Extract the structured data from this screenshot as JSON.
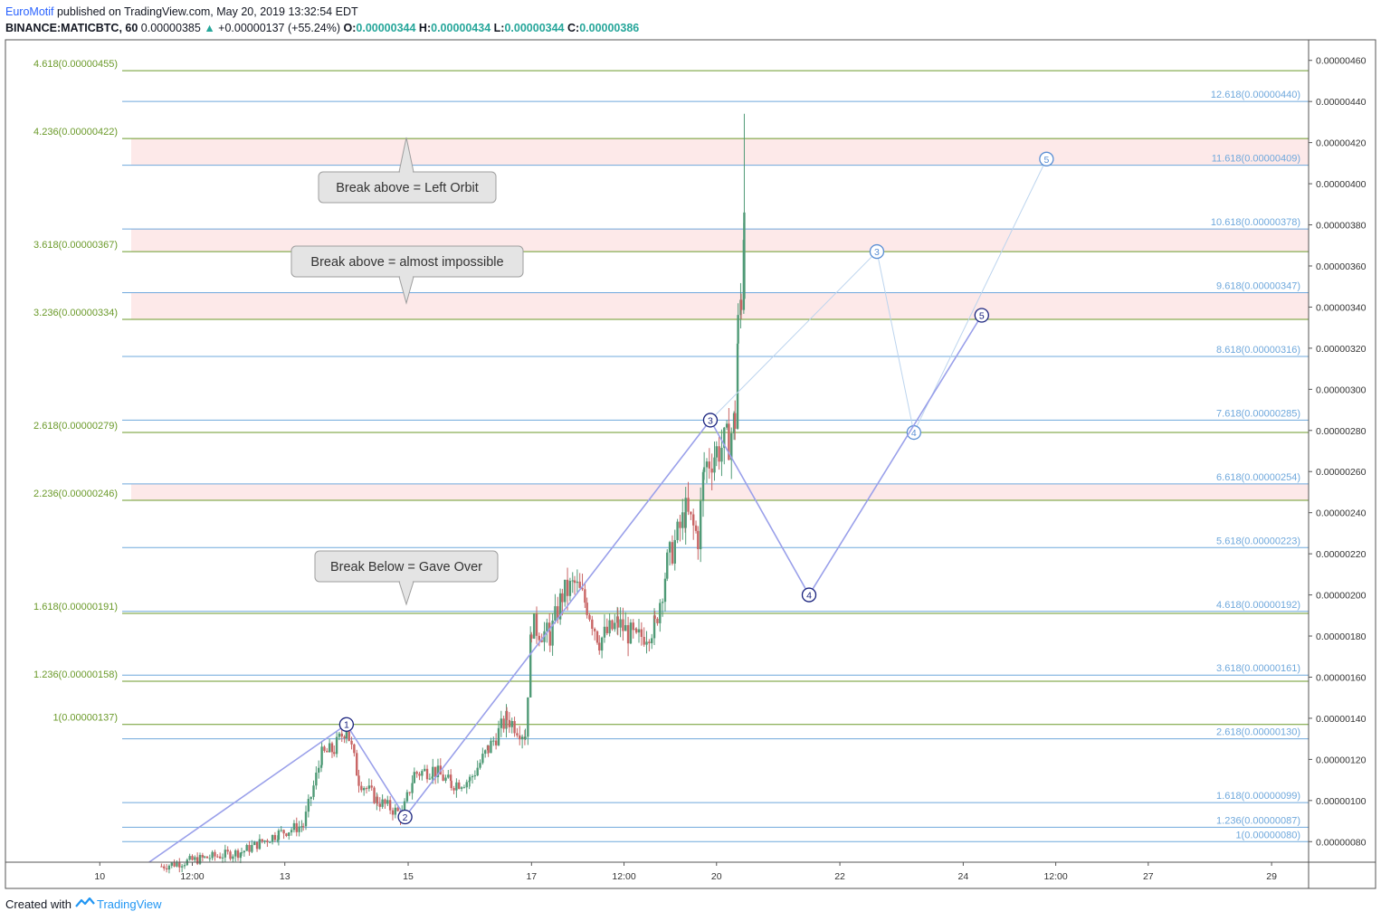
{
  "header": {
    "author": "EuroMotif",
    "published_text": "published on TradingView.com, May 20, 2019 13:32:54 EDT",
    "symbol": "BINANCE:MATICBTC, 60",
    "last": "0.00000385",
    "change_arrow": "▲",
    "change": "+0.00000137 (+55.24%)",
    "o_label": "O:",
    "o_val": "0.00000344",
    "h_label": "H:",
    "h_val": "0.00000434",
    "l_label": "L:",
    "l_val": "0.00000344",
    "c_label": "C:",
    "c_val": "0.00000386"
  },
  "footer": {
    "created_with": "Created with",
    "brand": "TradingView"
  },
  "colors": {
    "up": "#4f9a76",
    "down": "#c86464",
    "green_fib": "#6b9a2a",
    "blue_fib": "#6fa8dc",
    "zone": "#fde9e9",
    "wave": "#9aa0ea",
    "wave_light": "#bcd4ee",
    "label_dark": "#1a237e",
    "label_light": "#5b8fd4"
  },
  "chart_data": {
    "type": "candlestick",
    "y_axis": {
      "min": 7e-07,
      "max": 4.7e-06,
      "ticks": [
        "0.00000460",
        "0.00000440",
        "0.00000420",
        "0.00000400",
        "0.00000380",
        "0.00000360",
        "0.00000340",
        "0.00000320",
        "0.00000300",
        "0.00000280",
        "0.00000260",
        "0.00000240",
        "0.00000220",
        "0.00000200",
        "0.00000180",
        "0.00000160",
        "0.00000140",
        "0.00000120",
        "0.00000100",
        "0.00000080"
      ]
    },
    "x_axis": {
      "labels": [
        {
          "t": 10.0,
          "text": "10"
        },
        {
          "t": 11.5,
          "text": "12:00"
        },
        {
          "t": 13.0,
          "text": "13"
        },
        {
          "t": 15.0,
          "text": "15"
        },
        {
          "t": 17.0,
          "text": "17"
        },
        {
          "t": 18.5,
          "text": "12:00"
        },
        {
          "t": 20.0,
          "text": "20"
        },
        {
          "t": 22.0,
          "text": "22"
        },
        {
          "t": 24.0,
          "text": "24"
        },
        {
          "t": 25.5,
          "text": "12:00"
        },
        {
          "t": 27.0,
          "text": "27"
        },
        {
          "t": 29.0,
          "text": "29"
        }
      ]
    },
    "fib_left": [
      {
        "label": "4.618(0.00000455)",
        "price": 4.55e-06
      },
      {
        "label": "4.236(0.00000422)",
        "price": 4.22e-06
      },
      {
        "label": "3.618(0.00000367)",
        "price": 3.67e-06
      },
      {
        "label": "3.236(0.00000334)",
        "price": 3.34e-06
      },
      {
        "label": "2.618(0.00000279)",
        "price": 2.79e-06
      },
      {
        "label": "2.236(0.00000246)",
        "price": 2.46e-06
      },
      {
        "label": "1.618(0.00000191)",
        "price": 1.91e-06
      },
      {
        "label": "1.236(0.00000158)",
        "price": 1.58e-06
      },
      {
        "label": "1(0.00000137)",
        "price": 1.37e-06
      }
    ],
    "fib_right": [
      {
        "label": "12.618(0.00000440)",
        "price": 4.4e-06
      },
      {
        "label": "11.618(0.00000409)",
        "price": 4.09e-06
      },
      {
        "label": "10.618(0.00000378)",
        "price": 3.78e-06
      },
      {
        "label": "9.618(0.00000347)",
        "price": 3.47e-06
      },
      {
        "label": "8.618(0.00000316)",
        "price": 3.16e-06
      },
      {
        "label": "7.618(0.00000285)",
        "price": 2.85e-06
      },
      {
        "label": "6.618(0.00000254)",
        "price": 2.54e-06
      },
      {
        "label": "5.618(0.00000223)",
        "price": 2.23e-06
      },
      {
        "label": "4.618(0.00000192)",
        "price": 1.92e-06
      },
      {
        "label": "3.618(0.00000161)",
        "price": 1.61e-06
      },
      {
        "label": "2.618(0.00000130)",
        "price": 1.3e-06
      },
      {
        "label": "1.618(0.00000099)",
        "price": 9.9e-07
      },
      {
        "label": "1.236(0.00000087)",
        "price": 8.7e-07
      },
      {
        "label": "1(0.00000080)",
        "price": 8e-07
      }
    ],
    "zones": [
      {
        "from": 4.09e-06,
        "to": 4.22e-06
      },
      {
        "from": 3.67e-06,
        "to": 3.78e-06
      },
      {
        "from": 3.34e-06,
        "to": 3.47e-06
      },
      {
        "from": 2.46e-06,
        "to": 2.54e-06
      }
    ],
    "callouts": [
      {
        "text": "Break above = Left Orbit",
        "pointer": "up"
      },
      {
        "text": "Break above = almost impossible",
        "pointer": "down"
      },
      {
        "text": "Break Below = Gave Over",
        "pointer": "down"
      }
    ],
    "waves_primary": [
      {
        "label": "",
        "t": 10.8,
        "price": 7e-07
      },
      {
        "label": "1",
        "t": 14.0,
        "price": 1.37e-06
      },
      {
        "label": "2",
        "t": 14.95,
        "price": 9.2e-07
      },
      {
        "label": "3",
        "t": 19.9,
        "price": 2.85e-06
      },
      {
        "label": "4",
        "t": 21.5,
        "price": 2e-06
      },
      {
        "label": "5",
        "t": 24.3,
        "price": 3.36e-06
      }
    ],
    "waves_alt": [
      {
        "label": "3",
        "t": 22.6,
        "price": 3.67e-06
      },
      {
        "label": "4",
        "t": 23.2,
        "price": 2.79e-06
      },
      {
        "label": "5",
        "t": 25.35,
        "price": 4.12e-06
      }
    ],
    "candles_anchor": [
      {
        "t": 11.0,
        "price": 6.8e-07
      },
      {
        "t": 11.7,
        "price": 7.2e-07
      },
      {
        "t": 12.3,
        "price": 7.5e-07
      },
      {
        "t": 12.9,
        "price": 8.4e-07
      },
      {
        "t": 13.3,
        "price": 8.8e-07
      },
      {
        "t": 13.6,
        "price": 1.22e-06
      },
      {
        "t": 13.8,
        "price": 1.25e-06
      },
      {
        "t": 14.0,
        "price": 1.36e-06
      },
      {
        "t": 14.2,
        "price": 1.1e-06
      },
      {
        "t": 14.5,
        "price": 1e-06
      },
      {
        "t": 14.9,
        "price": 9.3e-07
      },
      {
        "t": 15.1,
        "price": 1.13e-06
      },
      {
        "t": 15.4,
        "price": 1.15e-06
      },
      {
        "t": 15.7,
        "price": 1.08e-06
      },
      {
        "t": 16.0,
        "price": 1.1e-06
      },
      {
        "t": 16.3,
        "price": 1.25e-06
      },
      {
        "t": 16.6,
        "price": 1.4e-06
      },
      {
        "t": 16.9,
        "price": 1.32e-06
      },
      {
        "t": 17.0,
        "price": 1.85e-06
      },
      {
        "t": 17.3,
        "price": 1.8e-06
      },
      {
        "t": 17.5,
        "price": 2e-06
      },
      {
        "t": 17.7,
        "price": 2.05e-06
      },
      {
        "t": 17.9,
        "price": 1.95e-06
      },
      {
        "t": 18.1,
        "price": 1.78e-06
      },
      {
        "t": 18.4,
        "price": 1.86e-06
      },
      {
        "t": 18.7,
        "price": 1.78e-06
      },
      {
        "t": 19.0,
        "price": 1.85e-06
      },
      {
        "t": 19.2,
        "price": 2.15e-06
      },
      {
        "t": 19.5,
        "price": 2.4e-06
      },
      {
        "t": 19.7,
        "price": 2.28e-06
      },
      {
        "t": 19.8,
        "price": 2.62e-06
      },
      {
        "t": 20.0,
        "price": 2.7e-06
      },
      {
        "t": 20.2,
        "price": 2.75e-06
      },
      {
        "t": 20.3,
        "price": 2.85e-06
      },
      {
        "t": 20.35,
        "price": 3.3e-06
      },
      {
        "t": 20.4,
        "price": 3.45e-06
      },
      {
        "t": 20.45,
        "price": 3.86e-06
      }
    ]
  }
}
